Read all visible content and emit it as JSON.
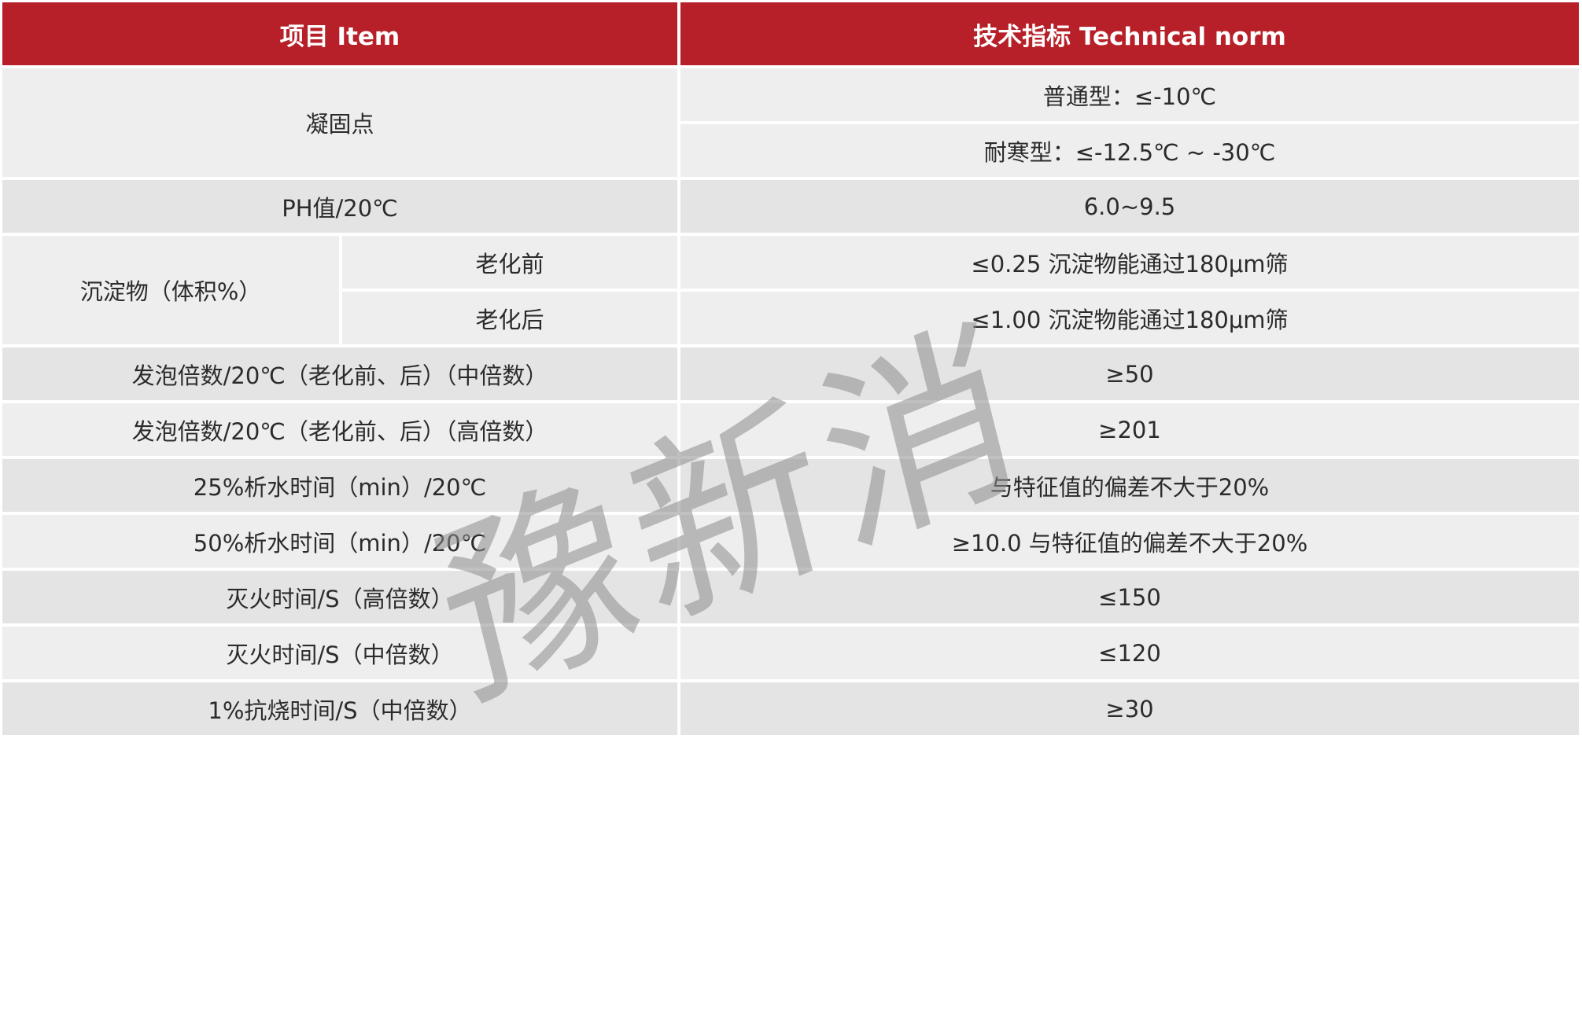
{
  "header": {
    "item": "项目  Item",
    "norm": "技术指标  Technical norm"
  },
  "rows": {
    "freeze": {
      "label": "凝固点",
      "normal": "普通型：≤-10℃",
      "cold": "耐寒型：≤-12.5℃ ~ -30℃"
    },
    "ph": {
      "label": "PH值/20℃",
      "value": "6.0~9.5"
    },
    "sediment": {
      "label": "沉淀物（体积%）",
      "before_label": "老化前",
      "before_value": "≤0.25   沉淀物能通过180μm筛",
      "after_label": "老化后",
      "after_value": "≤1.00   沉淀物能通过180μm筛"
    },
    "list": [
      {
        "label": "发泡倍数/20℃（老化前、后）（中倍数）",
        "value": "≥50"
      },
      {
        "label": "发泡倍数/20℃（老化前、后）（高倍数）",
        "value": "≥201"
      },
      {
        "label": "25%析水时间（min）/20℃",
        "value": "与特征值的偏差不大于20%"
      },
      {
        "label": "50%析水时间（min）/20℃",
        "value": "≥10.0 与特征值的偏差不大于20%"
      },
      {
        "label": "灭火时间/S（高倍数）",
        "value": "≤150"
      },
      {
        "label": "灭火时间/S（中倍数）",
        "value": "≤120"
      },
      {
        "label": "1%抗烧时间/S（中倍数）",
        "value": "≥30"
      }
    ]
  },
  "watermark": "豫新消",
  "colors": {
    "header": "#b72028",
    "row_light": "#eeeeee",
    "row_dark": "#e4e4e4"
  }
}
